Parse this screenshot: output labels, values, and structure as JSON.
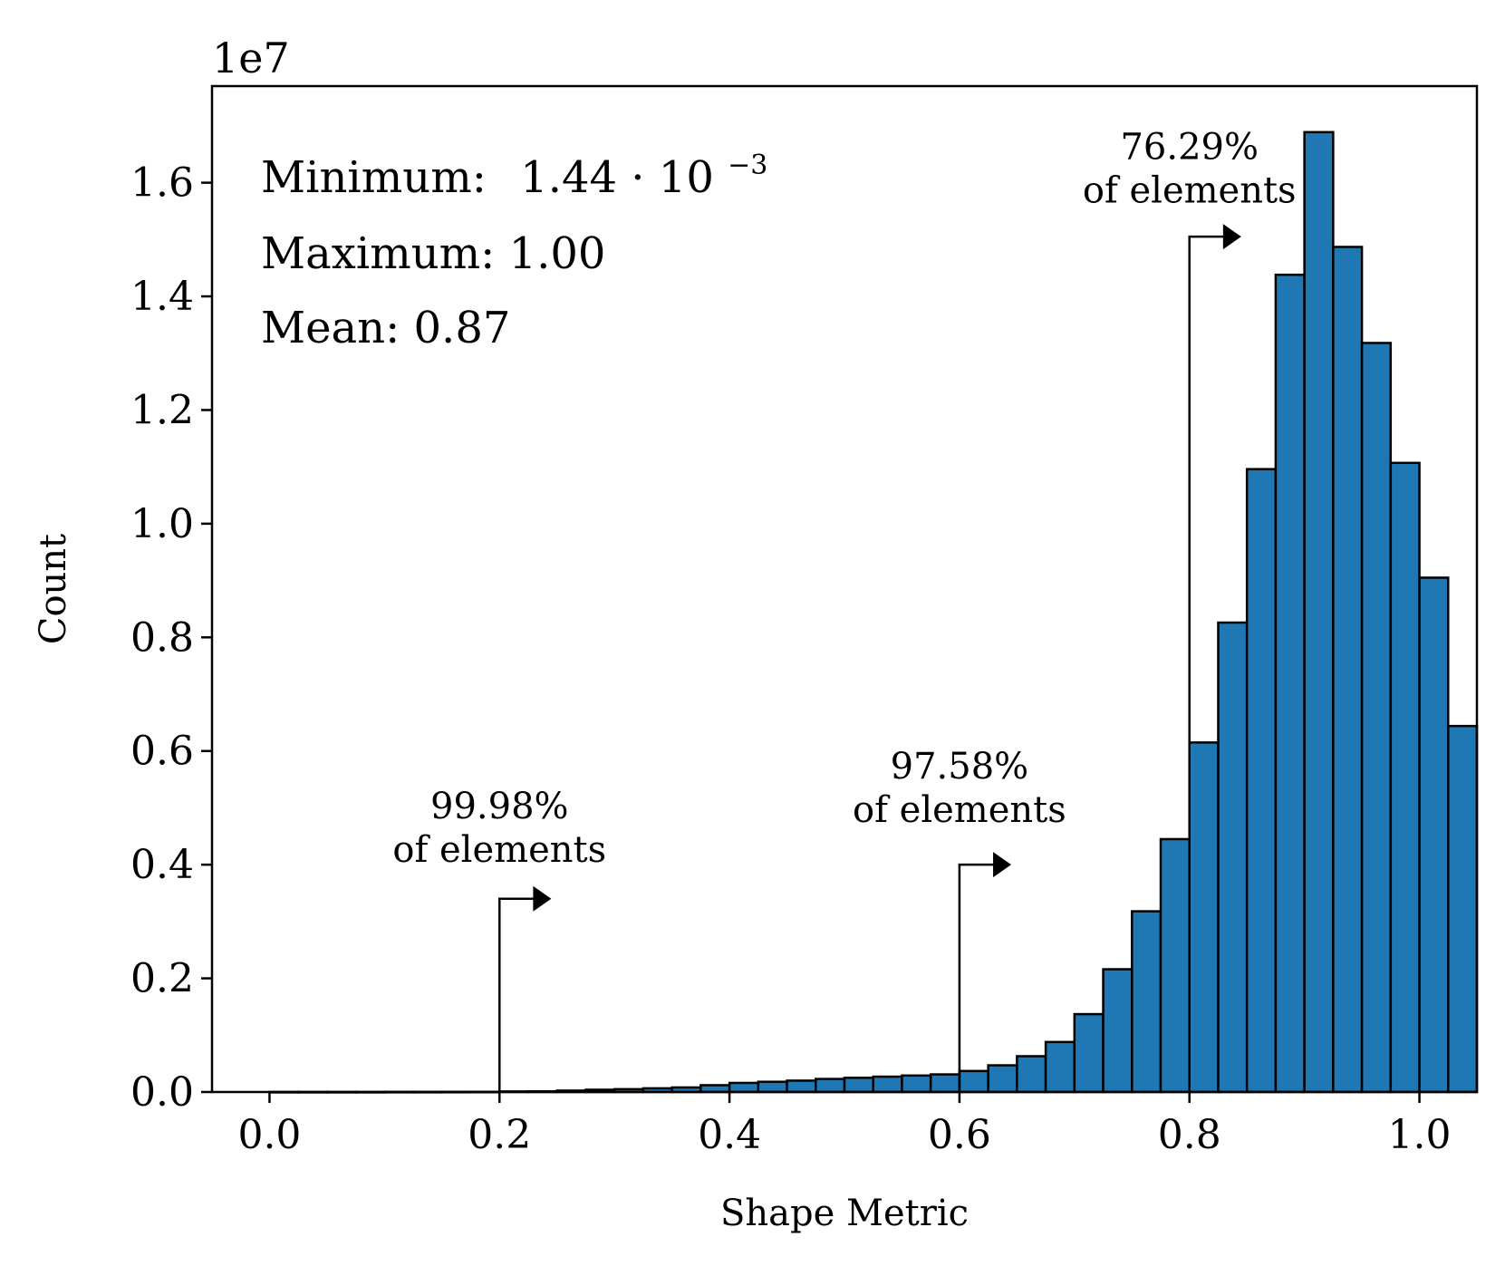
{
  "chart_data": {
    "type": "bar",
    "xlabel": "Shape Metric",
    "ylabel": "Count",
    "y_scale_label": "1e7",
    "xlim": [
      -0.05,
      1.05
    ],
    "ylim": [
      0,
      1.77
    ],
    "x_ticks": [
      {
        "value": 0.0,
        "label": "0.0"
      },
      {
        "value": 0.2,
        "label": "0.2"
      },
      {
        "value": 0.4,
        "label": "0.4"
      },
      {
        "value": 0.6,
        "label": "0.6"
      },
      {
        "value": 0.8,
        "label": "0.8"
      },
      {
        "value": 1.0,
        "label": "1.0"
      }
    ],
    "y_ticks": [
      {
        "value": 0.0,
        "label": "0.0"
      },
      {
        "value": 0.2,
        "label": "0.2"
      },
      {
        "value": 0.4,
        "label": "0.4"
      },
      {
        "value": 0.6,
        "label": "0.6"
      },
      {
        "value": 0.8,
        "label": "0.8"
      },
      {
        "value": 1.0,
        "label": "1.0"
      },
      {
        "value": 1.2,
        "label": "1.2"
      },
      {
        "value": 1.4,
        "label": "1.4"
      },
      {
        "value": 1.6,
        "label": "1.6"
      }
    ],
    "bin_width": 0.025,
    "bin_start": 0.0,
    "values": [
      0.0001,
      0.0001,
      0.0001,
      0.0001,
      0.0002,
      0.0002,
      0.0003,
      0.0004,
      0.001,
      0.0012,
      0.0025,
      0.004,
      0.005,
      0.0065,
      0.008,
      0.012,
      0.016,
      0.018,
      0.02,
      0.023,
      0.025,
      0.027,
      0.029,
      0.031,
      0.037,
      0.047,
      0.063,
      0.088,
      0.137,
      0.216,
      0.318,
      0.445,
      0.615,
      0.826,
      1.096,
      1.438,
      1.689,
      1.487,
      1.318,
      1.107,
      0.905,
      0.644
    ],
    "bar_color": "#1f77b4",
    "edge_color": "#000000",
    "stats": {
      "minimum_label": "Minimum:",
      "minimum_mantissa": "1.44 · 10",
      "minimum_exponent": "−3",
      "maximum": "Maximum: 1.00",
      "mean": "Mean: 0.87"
    },
    "annotations": [
      {
        "threshold": 0.2,
        "tip_x": 0.245,
        "line_top": 0.34,
        "text_x": 0.2,
        "text_y": 0.405,
        "percent": "99.98%",
        "suffix": "of elements"
      },
      {
        "threshold": 0.6,
        "tip_x": 0.645,
        "line_top": 0.4,
        "text_x": 0.6,
        "text_y": 0.475,
        "percent": "97.58%",
        "suffix": "of elements"
      },
      {
        "threshold": 0.8,
        "tip_x": 0.845,
        "line_top": 1.505,
        "text_x": 0.8,
        "text_y": 1.565,
        "percent": "76.29%",
        "suffix": "of elements"
      }
    ]
  }
}
